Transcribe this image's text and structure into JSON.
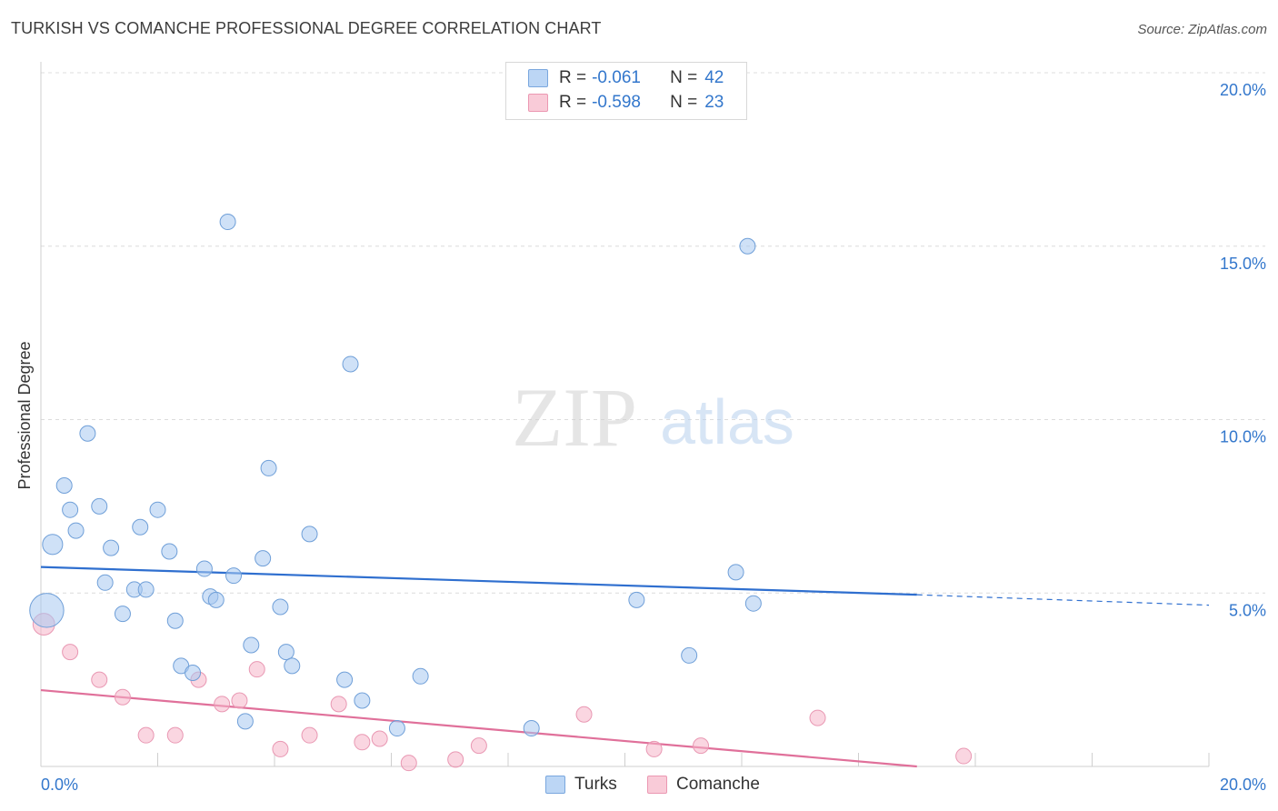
{
  "title": "TURKISH VS COMANCHE PROFESSIONAL DEGREE CORRELATION CHART",
  "source": "Source: ZipAtlas.com",
  "watermark": {
    "zip": "ZIP",
    "atlas": "atlas"
  },
  "legend": {
    "r_label": "R =",
    "n_label": "N =",
    "entries": [
      {
        "name": "Turks",
        "r": "-0.061",
        "n": "42"
      },
      {
        "name": "Comanche",
        "r": "-0.598",
        "n": "23"
      }
    ]
  },
  "chart_data": {
    "type": "scatter",
    "title": "TURKISH VS COMANCHE PROFESSIONAL DEGREE CORRELATION CHART",
    "ylabel": "Professional Degree",
    "xlabel": "",
    "xlim": [
      0,
      20
    ],
    "ylim": [
      0,
      20
    ],
    "x_tick_labels": [
      "0.0%",
      "20.0%"
    ],
    "y_tick_labels": [
      "20.0%",
      "15.0%",
      "10.0%",
      "5.0%"
    ],
    "y_ticks": [
      20,
      15,
      10,
      5
    ],
    "colors": {
      "turks": "#a8c8f0",
      "turks_line": "#2f6fcf",
      "comanche": "#f5b5c8",
      "comanche_line": "#e0709a",
      "tick_label": "#3377cc"
    },
    "series": [
      {
        "name": "Turks",
        "r": -0.061,
        "n": 42,
        "trend": {
          "x_start": 0.0,
          "y_start": 5.75,
          "x_solid_end": 15.0,
          "y_solid_end": 4.95,
          "x_dash_end": 20.0,
          "y_dash_end": 4.65
        },
        "points": [
          [
            0.1,
            4.5,
            2.2
          ],
          [
            0.2,
            6.4,
            1.3
          ],
          [
            0.4,
            8.1,
            1.0
          ],
          [
            0.5,
            7.4,
            1.0
          ],
          [
            0.6,
            6.8,
            1.0
          ],
          [
            0.8,
            9.6,
            1.0
          ],
          [
            1.0,
            7.5,
            1.0
          ],
          [
            1.1,
            5.3,
            1.0
          ],
          [
            1.2,
            6.3,
            1.0
          ],
          [
            1.4,
            4.4,
            1.0
          ],
          [
            1.6,
            5.1,
            1.0
          ],
          [
            1.7,
            6.9,
            1.0
          ],
          [
            1.8,
            5.1,
            1.0
          ],
          [
            2.0,
            7.4,
            1.0
          ],
          [
            2.2,
            6.2,
            1.0
          ],
          [
            2.3,
            4.2,
            1.0
          ],
          [
            2.4,
            2.9,
            1.0
          ],
          [
            2.6,
            2.7,
            1.0
          ],
          [
            2.8,
            5.7,
            1.0
          ],
          [
            2.9,
            4.9,
            1.0
          ],
          [
            3.0,
            4.8,
            1.0
          ],
          [
            3.2,
            15.7,
            1.0
          ],
          [
            3.3,
            5.5,
            1.0
          ],
          [
            3.5,
            1.3,
            1.0
          ],
          [
            3.6,
            3.5,
            1.0
          ],
          [
            3.8,
            6.0,
            1.0
          ],
          [
            3.9,
            8.6,
            1.0
          ],
          [
            4.1,
            4.6,
            1.0
          ],
          [
            4.2,
            3.3,
            1.0
          ],
          [
            4.3,
            2.9,
            1.0
          ],
          [
            4.6,
            6.7,
            1.0
          ],
          [
            5.3,
            11.6,
            1.0
          ],
          [
            5.2,
            2.5,
            1.0
          ],
          [
            5.5,
            1.9,
            1.0
          ],
          [
            6.1,
            1.1,
            1.0
          ],
          [
            6.5,
            2.6,
            1.0
          ],
          [
            8.4,
            1.1,
            1.0
          ],
          [
            10.2,
            4.8,
            1.0
          ],
          [
            11.1,
            3.2,
            1.0
          ],
          [
            11.9,
            5.6,
            1.0
          ],
          [
            12.1,
            15.0,
            1.0
          ],
          [
            12.2,
            4.7,
            1.0
          ]
        ]
      },
      {
        "name": "Comanche",
        "r": -0.598,
        "n": 23,
        "trend": {
          "x_start": 0.0,
          "y_start": 2.2,
          "x_end": 15.0,
          "y_end": 0.0
        },
        "points": [
          [
            0.05,
            4.1,
            1.4
          ],
          [
            0.5,
            3.3,
            1.0
          ],
          [
            1.0,
            2.5,
            1.0
          ],
          [
            1.4,
            2.0,
            1.0
          ],
          [
            1.8,
            0.9,
            1.0
          ],
          [
            2.3,
            0.9,
            1.0
          ],
          [
            2.7,
            2.5,
            1.0
          ],
          [
            3.1,
            1.8,
            1.0
          ],
          [
            3.4,
            1.9,
            1.0
          ],
          [
            3.7,
            2.8,
            1.0
          ],
          [
            4.1,
            0.5,
            1.0
          ],
          [
            4.6,
            0.9,
            1.0
          ],
          [
            5.1,
            1.8,
            1.0
          ],
          [
            5.5,
            0.7,
            1.0
          ],
          [
            5.8,
            0.8,
            1.0
          ],
          [
            6.3,
            0.1,
            1.0
          ],
          [
            7.1,
            0.2,
            1.0
          ],
          [
            7.5,
            0.6,
            1.0
          ],
          [
            9.3,
            1.5,
            1.0
          ],
          [
            10.5,
            0.5,
            1.0
          ],
          [
            11.3,
            0.6,
            1.0
          ],
          [
            13.3,
            1.4,
            1.0
          ],
          [
            15.8,
            0.3,
            1.0
          ]
        ]
      }
    ]
  }
}
